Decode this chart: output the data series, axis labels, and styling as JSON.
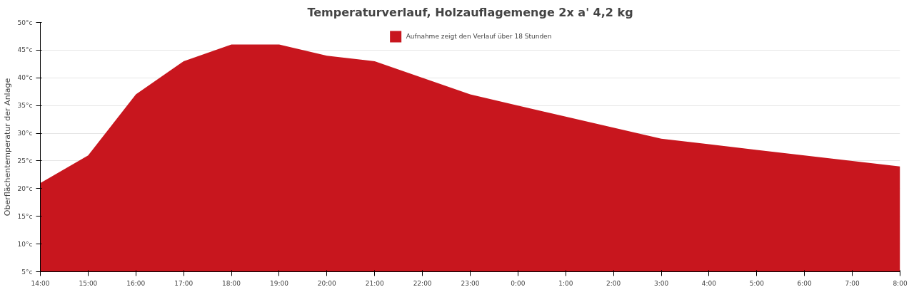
{
  "chart_data": {
    "type": "area",
    "title": "Temperaturverlauf, Holzauflagemenge 2x a' 4,2 kg",
    "ylabel": "Oberflächentemperatur der Anlage",
    "categories": [
      "14:00",
      "15:00",
      "16:00",
      "17:00",
      "18:00",
      "19:00",
      "20:00",
      "21:00",
      "22:00",
      "23:00",
      "0:00",
      "1:00",
      "2:00",
      "3:00",
      "4:00",
      "5:00",
      "6:00",
      "7:00",
      "8:00"
    ],
    "series": [
      {
        "name": "Aufnahme zeigt den Verlauf über 18 Stunden",
        "color": "#c8161e",
        "values": [
          21,
          26,
          37,
          43,
          46,
          46,
          44,
          43,
          40,
          37,
          35,
          33,
          31,
          29,
          28,
          27,
          26,
          25,
          24
        ]
      }
    ],
    "ylim": [
      5,
      50
    ],
    "yticks": [
      {
        "value": 5,
        "label": "5°c"
      },
      {
        "value": 10,
        "label": "10°c"
      },
      {
        "value": 15,
        "label": "15°c"
      },
      {
        "value": 20,
        "label": "20°c"
      },
      {
        "value": 25,
        "label": "25°c"
      },
      {
        "value": 30,
        "label": "30°c"
      },
      {
        "value": 35,
        "label": "35°c"
      },
      {
        "value": 40,
        "label": "40°c"
      },
      {
        "value": 45,
        "label": "45°c"
      },
      {
        "value": 50,
        "label": "50°c"
      }
    ],
    "grid": "y",
    "legend": "top"
  }
}
